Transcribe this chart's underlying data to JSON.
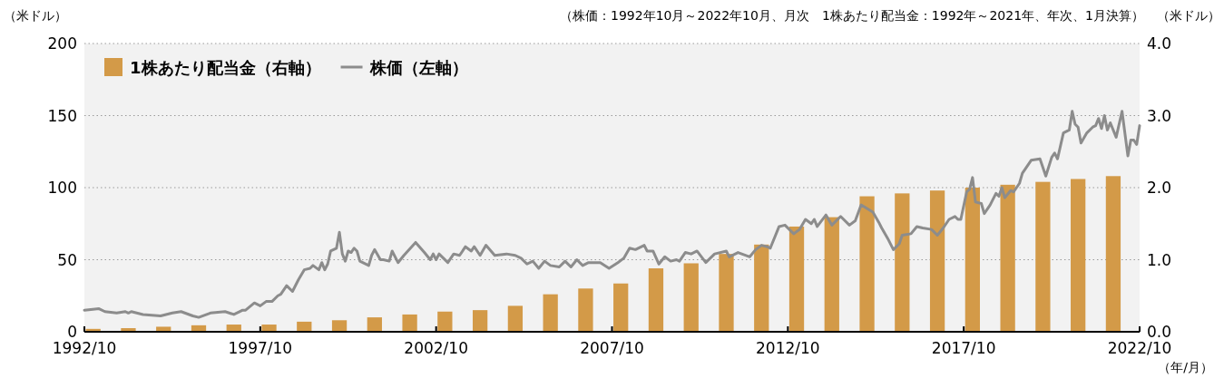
{
  "chart_data": {
    "type": "line",
    "subtitle": "（株価：1992年10月～2022年10月、月次　1株あたり配当金：1992年～2021年、年次、1月決算）",
    "ylabel": "（米ドル）",
    "y2label": "（米ドル）",
    "xlabel": "（年/月）",
    "xlim": [
      "1992-10",
      "2022-10"
    ],
    "xticks": [
      {
        "value": "1992-10",
        "label": "1992/10"
      },
      {
        "value": "1997-10",
        "label": "1997/10"
      },
      {
        "value": "2002-10",
        "label": "2002/10"
      },
      {
        "value": "2007-10",
        "label": "2007/10"
      },
      {
        "value": "2012-10",
        "label": "2012/10"
      },
      {
        "value": "2017-10",
        "label": "2017/10"
      },
      {
        "value": "2022-10",
        "label": "2022/10"
      }
    ],
    "ylim": [
      0,
      200
    ],
    "yticks": [
      0,
      50,
      100,
      150,
      200
    ],
    "y2lim": [
      0,
      4
    ],
    "y2ticks": [
      {
        "value": 0,
        "label": "0.0"
      },
      {
        "value": 1,
        "label": "1.0"
      },
      {
        "value": 2,
        "label": "2.0"
      },
      {
        "value": 3,
        "label": "3.0"
      },
      {
        "value": 4,
        "label": "4.0"
      }
    ],
    "grid": "y",
    "legend": "top left",
    "series": [
      {
        "name": "1株あたり配当金（右軸）",
        "type": "bar",
        "axis": "y2",
        "color": "#d39a48",
        "x": [
          "1993-01",
          "1994-01",
          "1995-01",
          "1996-01",
          "1997-01",
          "1998-01",
          "1999-01",
          "2000-01",
          "2001-01",
          "2002-01",
          "2003-01",
          "2004-01",
          "2005-01",
          "2006-01",
          "2007-01",
          "2008-01",
          "2009-01",
          "2010-01",
          "2011-01",
          "2012-01",
          "2013-01",
          "2014-01",
          "2015-01",
          "2016-01",
          "2017-01",
          "2018-01",
          "2019-01",
          "2020-01",
          "2021-01",
          "2022-01"
        ],
        "values": [
          0.04,
          0.05,
          0.07,
          0.09,
          0.1,
          0.1,
          0.14,
          0.16,
          0.2,
          0.24,
          0.28,
          0.3,
          0.36,
          0.52,
          0.6,
          0.67,
          0.88,
          0.95,
          1.08,
          1.21,
          1.46,
          1.59,
          1.88,
          1.92,
          1.96,
          2.0,
          2.04,
          2.08,
          2.12,
          2.16
        ]
      },
      {
        "name": "株価（左軸）",
        "axis": "y",
        "color": "#8c8c8c",
        "x": [
          "1992-10",
          "1993-03",
          "1993-05",
          "1993-09",
          "1993-12",
          "1994-01",
          "1994-02",
          "1994-06",
          "1994-12",
          "1995-04",
          "1995-07",
          "1995-11",
          "1996-01",
          "1996-05",
          "1996-10",
          "1997-01",
          "1997-04",
          "1997-05",
          "1997-08",
          "1997-10",
          "1997-12",
          "1998-02",
          "1998-04",
          "1998-05",
          "1998-07",
          "1998-09",
          "1998-11",
          "1999-01",
          "1999-03",
          "1999-04",
          "1999-06",
          "1999-07",
          "1999-08",
          "1999-09",
          "1999-10",
          "1999-12",
          "2000-01",
          "2000-02",
          "2000-03",
          "2000-04",
          "2000-05",
          "2000-06",
          "2000-07",
          "2000-08",
          "2000-11",
          "2000-12",
          "2001-01",
          "2001-03",
          "2001-04",
          "2001-06",
          "2001-07",
          "2001-09",
          "2001-11",
          "2002-03",
          "2002-06",
          "2002-08",
          "2002-09",
          "2002-10",
          "2002-11",
          "2003-02",
          "2003-04",
          "2003-06",
          "2003-08",
          "2003-10",
          "2003-11",
          "2004-01",
          "2004-03",
          "2004-06",
          "2004-10",
          "2005-01",
          "2005-03",
          "2005-05",
          "2005-07",
          "2005-09",
          "2005-11",
          "2006-01",
          "2006-04",
          "2006-06",
          "2006-08",
          "2006-10",
          "2006-12",
          "2007-02",
          "2007-06",
          "2007-09",
          "2007-12",
          "2008-02",
          "2008-04",
          "2008-06",
          "2008-09",
          "2008-10",
          "2008-12",
          "2009-02",
          "2009-04",
          "2009-06",
          "2009-08",
          "2009-09",
          "2009-11",
          "2010-01",
          "2010-03",
          "2010-06",
          "2010-09",
          "2011-01",
          "2011-02",
          "2011-05",
          "2011-09",
          "2011-11",
          "2012-01",
          "2012-03",
          "2012-04",
          "2012-07",
          "2012-09",
          "2012-12",
          "2013-02",
          "2013-04",
          "2013-06",
          "2013-07",
          "2013-08",
          "2013-11",
          "2014-01",
          "2014-04",
          "2014-07",
          "2014-09",
          "2014-11",
          "2015-03",
          "2015-05",
          "2015-06",
          "2015-08",
          "2015-10",
          "2015-12",
          "2016-01",
          "2016-04",
          "2016-06",
          "2016-08",
          "2016-11",
          "2017-01",
          "2017-03",
          "2017-05",
          "2017-07",
          "2017-08",
          "2017-09",
          "2017-11",
          "2017-12",
          "2018-01",
          "2018-02",
          "2018-04",
          "2018-05",
          "2018-07",
          "2018-09",
          "2018-10",
          "2018-11",
          "2018-12",
          "2019-02",
          "2019-03",
          "2019-05",
          "2019-06",
          "2019-09",
          "2019-12",
          "2020-02",
          "2020-04",
          "2020-05",
          "2020-06",
          "2020-08",
          "2020-10",
          "2020-11",
          "2020-12",
          "2021-01",
          "2021-02",
          "2021-04",
          "2021-06",
          "2021-07",
          "2021-08",
          "2021-09",
          "2021-10",
          "2021-11",
          "2021-12",
          "2022-02",
          "2022-04",
          "2022-06",
          "2022-07",
          "2022-08",
          "2022-09",
          "2022-10"
        ],
        "values": [
          15,
          16,
          14,
          13,
          14,
          13,
          14,
          12,
          11,
          13,
          14,
          11,
          10,
          13,
          14,
          12,
          15,
          15,
          20,
          18,
          21,
          21,
          25,
          26,
          32,
          28,
          36,
          43,
          44,
          46,
          43,
          48,
          43,
          47,
          56,
          58,
          69,
          54,
          49,
          56,
          55,
          58,
          56,
          49,
          46,
          53,
          57,
          50,
          50,
          49,
          56,
          48,
          53,
          62,
          55,
          50,
          54,
          50,
          54,
          48,
          54,
          53,
          59,
          56,
          59,
          53,
          60,
          53,
          54,
          53,
          51,
          47,
          49,
          44,
          49,
          46,
          45,
          49,
          45,
          50,
          46,
          48,
          48,
          44,
          48,
          51,
          58,
          57,
          60,
          56,
          56,
          47,
          52,
          49,
          50,
          49,
          55,
          54,
          56,
          48,
          54,
          56,
          52,
          55,
          52,
          57,
          60,
          59,
          58,
          73,
          74,
          68,
          71,
          78,
          75,
          78,
          73,
          81,
          74,
          80,
          74,
          77,
          88,
          83,
          76,
          72,
          65,
          57,
          61,
          67,
          68,
          73,
          72,
          71,
          67,
          72,
          78,
          80,
          78,
          78,
          97,
          99,
          107,
          90,
          89,
          82,
          88,
          96,
          94,
          100,
          93,
          98,
          97,
          103,
          110,
          119,
          120,
          108,
          121,
          124,
          120,
          138,
          140,
          153,
          144,
          142,
          131,
          138,
          142,
          143,
          148,
          141,
          150,
          140,
          145,
          135,
          153,
          122,
          133,
          133,
          130,
          143
        ]
      }
    ]
  }
}
